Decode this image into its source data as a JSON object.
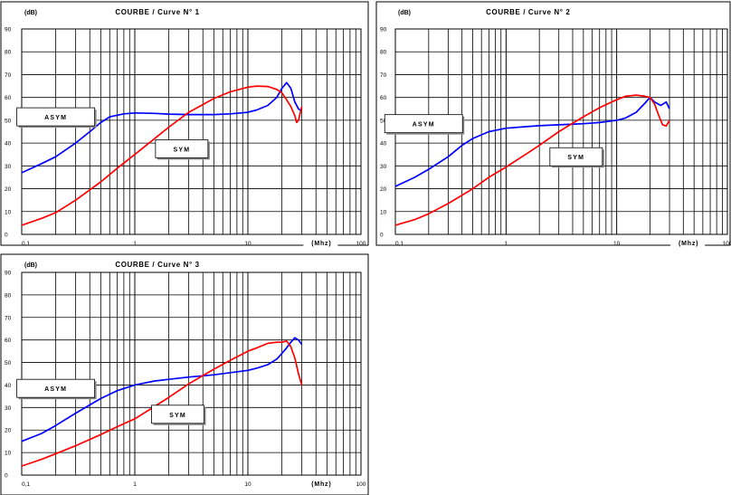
{
  "chart_data": [
    {
      "type": "line",
      "title": "COURBE / Curve N° 1",
      "ylabel": "(dB)",
      "xlabel": "(Mhz)",
      "xscale": "log",
      "xlim": [
        0.1,
        100
      ],
      "ylim": [
        0,
        90
      ],
      "xticks": [
        "0,1",
        "1",
        "10",
        "100"
      ],
      "yticks": [
        "0",
        "10",
        "20",
        "30",
        "40",
        "50",
        "60",
        "70",
        "80",
        "90"
      ],
      "grid": true,
      "series": [
        {
          "name": "ASYM",
          "color": "#0000ff",
          "x": [
            0.1,
            0.15,
            0.2,
            0.3,
            0.4,
            0.5,
            0.6,
            0.8,
            1,
            1.5,
            2,
            3,
            5,
            7,
            10,
            12,
            15,
            18,
            20,
            22,
            24,
            26,
            28,
            30
          ],
          "y": [
            27,
            31,
            34,
            40,
            45,
            49,
            51.5,
            52.8,
            53.2,
            53,
            52.7,
            52.5,
            52.5,
            52.8,
            53.5,
            54.5,
            56.5,
            60,
            64,
            66.5,
            64,
            58,
            55,
            54
          ]
        },
        {
          "name": "SYM",
          "color": "#ff0000",
          "x": [
            0.1,
            0.15,
            0.2,
            0.3,
            0.5,
            0.7,
            1,
            1.5,
            2,
            3,
            5,
            7,
            10,
            12,
            15,
            18,
            20,
            22,
            24,
            26,
            27,
            28,
            30
          ],
          "y": [
            4,
            7,
            9.5,
            15,
            23,
            29,
            35,
            42,
            47,
            53.5,
            59.5,
            62.5,
            64.5,
            65,
            64.8,
            63.5,
            62,
            59,
            56,
            52,
            49,
            50,
            56
          ]
        }
      ],
      "annotations": [
        {
          "label": "ASYM",
          "x": 0.2,
          "y": 51.5
        },
        {
          "label": "SYM",
          "x": 2.6,
          "y": 37.5
        }
      ]
    },
    {
      "type": "line",
      "title": "COURBE / Curve N° 2",
      "ylabel": "(dB)",
      "xlabel": "(Mhz)",
      "xscale": "log",
      "xlim": [
        0.1,
        100
      ],
      "ylim": [
        0,
        90
      ],
      "xticks": [
        "0,1",
        "1",
        "10",
        "100"
      ],
      "yticks": [
        "0",
        "10",
        "20",
        "30",
        "40",
        "50",
        "60",
        "70",
        "80",
        "90"
      ],
      "grid": true,
      "series": [
        {
          "name": "ASYM",
          "color": "#0000ff",
          "x": [
            0.1,
            0.15,
            0.2,
            0.3,
            0.4,
            0.5,
            0.7,
            1,
            1.5,
            2,
            3,
            5,
            7,
            10,
            12,
            15,
            18,
            20,
            22,
            25,
            28,
            30
          ],
          "y": [
            21,
            25,
            28.5,
            34,
            39,
            42,
            45,
            46.5,
            47.2,
            47.6,
            48,
            48.5,
            49,
            50,
            51,
            53.5,
            57.5,
            60,
            58,
            56.5,
            58,
            55
          ]
        },
        {
          "name": "SYM",
          "color": "#ff0000",
          "x": [
            0.1,
            0.15,
            0.2,
            0.3,
            0.5,
            0.7,
            1,
            1.5,
            2,
            3,
            5,
            7,
            10,
            12,
            15,
            18,
            20,
            22,
            24,
            26,
            28,
            30
          ],
          "y": [
            4,
            6.5,
            9,
            13.5,
            20,
            25,
            29.5,
            35,
            39,
            45,
            51.5,
            55.5,
            59,
            60.5,
            61,
            60.5,
            60,
            57,
            52,
            48,
            47.5,
            50
          ]
        }
      ],
      "annotations": [
        {
          "label": "ASYM",
          "x": 0.18,
          "y": 48.5
        },
        {
          "label": "SYM",
          "x": 4.3,
          "y": 34
        }
      ]
    },
    {
      "type": "line",
      "title": "COURBE / Curve N° 3",
      "ylabel": "(dB)",
      "xlabel": "(Mhz)",
      "xscale": "log",
      "xlim": [
        0.1,
        100
      ],
      "ylim": [
        0,
        90
      ],
      "xticks": [
        "0,1",
        "1",
        "10",
        "100"
      ],
      "yticks": [
        "0",
        "10",
        "20",
        "30",
        "40",
        "50",
        "60",
        "70",
        "80",
        "90"
      ],
      "grid": true,
      "series": [
        {
          "name": "ASYM",
          "color": "#0000ff",
          "x": [
            0.1,
            0.15,
            0.2,
            0.3,
            0.5,
            0.7,
            1,
            1.5,
            2,
            3,
            5,
            7,
            10,
            12,
            15,
            18,
            20,
            22,
            24,
            26,
            28,
            30
          ],
          "y": [
            15,
            18.5,
            22,
            27.5,
            34,
            37.5,
            40,
            41.8,
            42.5,
            43.5,
            44.5,
            45.5,
            46.5,
            47.5,
            49,
            51.5,
            54,
            56.5,
            59,
            61,
            60,
            58
          ]
        },
        {
          "name": "SYM",
          "color": "#ff0000",
          "x": [
            0.1,
            0.15,
            0.2,
            0.3,
            0.5,
            0.7,
            1,
            1.5,
            2,
            3,
            5,
            7,
            10,
            12,
            15,
            18,
            20,
            22,
            24,
            26,
            28,
            30
          ],
          "y": [
            4,
            7,
            9.5,
            13,
            18,
            21.5,
            25,
            30.5,
            34.5,
            40.5,
            47,
            51,
            55,
            56.5,
            58.5,
            59,
            59,
            59.5,
            57,
            52,
            45,
            40
          ]
        }
      ],
      "annotations": [
        {
          "label": "ASYM",
          "x": 0.2,
          "y": 38.5
        },
        {
          "label": "SYM",
          "x": 2.4,
          "y": 27
        }
      ]
    }
  ]
}
